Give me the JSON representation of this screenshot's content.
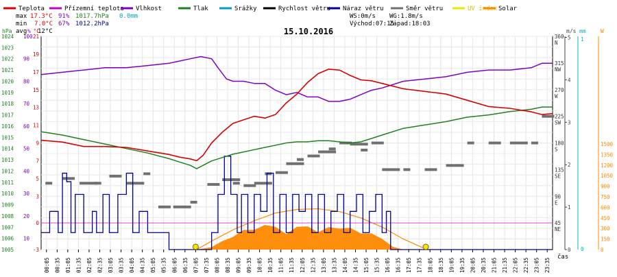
{
  "chart_data": {
    "type": "line",
    "title": "15.10.2016",
    "legend": [
      {
        "name": "Teplota",
        "color": "#d80000"
      },
      {
        "name": "Přízemní teplota",
        "color": "#c000c0"
      },
      {
        "name": "Vlhkost",
        "color": "#8000c0"
      },
      {
        "name": "Tlak",
        "color": "#208020"
      },
      {
        "name": "Srážky",
        "color": "#00a0c0"
      },
      {
        "name": "Rychlost větru",
        "color": "#000000"
      },
      {
        "name": "Náraz větru",
        "color": "#000090"
      },
      {
        "name": "Směr větru",
        "color": "#707070"
      },
      {
        "name": "UV index",
        "color": "#e8e800"
      },
      {
        "name": "Solar",
        "color": "#ff8800"
      }
    ],
    "stats": {
      "max_label": "max",
      "max_temp": "17.3°C",
      "max_hum": "91%",
      "max_press": "1017.7hPa",
      "max_rain": "0.0mm",
      "min_label": "min",
      "min_temp": "7.0°C",
      "min_hum": "67%",
      "min_press": "1012.2hPa",
      "avg_label": "avg",
      "avg_temp": "12°C",
      "ws": "WS:0m/s",
      "wg": "WG:1.8m/s",
      "sunrise": "Východ:07:15",
      "sunset": "Západ:18:03"
    },
    "axes": {
      "hpa": {
        "unit": "hPa",
        "color": "#208020",
        "ticks": [
          "1005",
          "1006",
          "1007",
          "1008",
          "1009",
          "1010",
          "1011",
          "1012",
          "1013",
          "1014",
          "1015",
          "1016",
          "1017",
          "1018",
          "1019",
          "1020",
          "1021",
          "1022",
          "1023",
          "1024"
        ]
      },
      "pct": {
        "unit": "%",
        "color": "#8000c0",
        "ticks": [
          "10",
          "20",
          "30",
          "40",
          "50",
          "60",
          "70",
          "80",
          "90",
          "100"
        ]
      },
      "temp": {
        "unit": "°C",
        "color": "#d80000",
        "ticks": [
          "-3",
          "0",
          "3",
          "5",
          "7",
          "9",
          "11",
          "13",
          "15",
          "17",
          "19",
          "21"
        ]
      },
      "dir": {
        "ticks": [
          "360",
          "N",
          "315",
          "NW",
          "270",
          "W",
          "225",
          "SW",
          "180",
          "S",
          "135",
          "SE",
          "90",
          "E",
          "45",
          "NE"
        ]
      },
      "ms": {
        "unit": "m/s",
        "color": "#404040",
        "ticks": [
          "0",
          "1",
          "2",
          "3",
          "4",
          "5"
        ]
      },
      "mm": {
        "unit": "mm",
        "color": "#00b0c0",
        "ticks": [
          "0",
          "1"
        ]
      },
      "solar": {
        "unit": "W",
        "color": "#ff8800",
        "ticks": [
          "0",
          "150",
          "300",
          "450",
          "600",
          "750",
          "900",
          "1050",
          "1200",
          "1350",
          "1500"
        ]
      }
    },
    "x_label": "čas",
    "x_ticks": [
      "00:05",
      "00:35",
      "01:05",
      "01:35",
      "02:05",
      "02:35",
      "03:05",
      "03:35",
      "04:05",
      "04:35",
      "05:05",
      "05:35",
      "06:05",
      "06:35",
      "07:05",
      "07:35",
      "08:05",
      "08:35",
      "09:05",
      "09:35",
      "10:05",
      "10:35",
      "11:05",
      "11:35",
      "12:05",
      "12:35",
      "13:05",
      "13:35",
      "14:05",
      "14:35",
      "15:05",
      "15:35",
      "16:05",
      "16:35",
      "17:05",
      "17:35",
      "18:05",
      "18:35",
      "19:05",
      "19:35",
      "20:05",
      "20:35",
      "21:05",
      "21:35",
      "22:05",
      "22:35",
      "23:05",
      "23:35"
    ],
    "series": {
      "temperature": {
        "x_hours": [
          0,
          1,
          2,
          3,
          4,
          5,
          6,
          6.5,
          7,
          7.3,
          7.6,
          8,
          8.5,
          9,
          9.5,
          10,
          10.5,
          11,
          11.5,
          12,
          12.5,
          13,
          13.5,
          14,
          14.5,
          15,
          15.5,
          16,
          17,
          18,
          19,
          20,
          21,
          22,
          23,
          23.5,
          24
        ],
        "values": [
          9.3,
          9.1,
          8.6,
          8.6,
          8.5,
          8.1,
          7.7,
          7.4,
          7.2,
          7.0,
          7.6,
          9.0,
          10.2,
          11.2,
          11.6,
          12.0,
          11.8,
          12.2,
          13.5,
          14.5,
          15.8,
          16.8,
          17.3,
          17.2,
          16.6,
          16.1,
          16.0,
          15.7,
          15.1,
          14.8,
          14.5,
          13.8,
          13.1,
          12.9,
          12.5,
          12.2,
          12.3
        ]
      },
      "humidity": {
        "x_hours": [
          0,
          1,
          2,
          3,
          4,
          5,
          6,
          6.5,
          7,
          7.5,
          8,
          8.3,
          8.7,
          9,
          9.5,
          10,
          10.5,
          11,
          11.5,
          12,
          12.5,
          13,
          13.5,
          14,
          14.5,
          15,
          15.5,
          16,
          17,
          18,
          19,
          20,
          21,
          22,
          23,
          23.5,
          24
        ],
        "values": [
          83,
          84,
          85,
          86,
          86,
          87,
          88,
          89,
          90,
          91,
          90,
          86,
          81,
          80,
          80,
          79,
          79,
          76,
          74,
          75,
          73,
          73,
          71,
          71,
          72,
          74,
          76,
          77,
          80,
          81,
          82,
          84,
          85,
          85,
          86,
          88,
          88
        ]
      },
      "pressure": {
        "x_hours": [
          0,
          1,
          2,
          3,
          4,
          5,
          6,
          6.5,
          7,
          7.3,
          7.7,
          8,
          8.5,
          9,
          9.5,
          10,
          10.5,
          11,
          11.5,
          12,
          12.5,
          13,
          13.5,
          14,
          14.5,
          15,
          15.5,
          16,
          17,
          18,
          19,
          20,
          21,
          22,
          23,
          23.5,
          24
        ],
        "values": [
          1015.5,
          1015.2,
          1014.8,
          1014.4,
          1014.0,
          1013.6,
          1013.1,
          1012.8,
          1012.5,
          1012.2,
          1012.6,
          1012.9,
          1013.2,
          1013.5,
          1013.7,
          1013.9,
          1014.1,
          1014.3,
          1014.5,
          1014.6,
          1014.6,
          1014.7,
          1014.7,
          1014.6,
          1014.5,
          1014.6,
          1014.9,
          1015.2,
          1015.8,
          1016.1,
          1016.4,
          1016.8,
          1017.0,
          1017.3,
          1017.5,
          1017.7,
          1017.7
        ]
      },
      "wind_direction_deg": {
        "x_hours": [
          0.2,
          1,
          1.8,
          2.5,
          3.2,
          4,
          4.8,
          5.5,
          6.2,
          7,
          7.8,
          8.5,
          9,
          9.5,
          10,
          10.5,
          11,
          11.5,
          12,
          12.5,
          13,
          13.5,
          14,
          14.5,
          15,
          15.5,
          16,
          17,
          18,
          19,
          20,
          21,
          22,
          23,
          23.5
        ],
        "values": [
          112,
          120,
          112,
          112,
          124,
          112,
          128,
          72,
          72,
          80,
          110,
          118,
          112,
          108,
          112,
          128,
          130,
          145,
          152,
          158,
          165,
          170,
          180,
          178,
          168,
          180,
          135,
          135,
          135,
          142,
          180,
          180,
          180,
          180,
          225
        ]
      },
      "wind_gust_ms": {
        "x_hours": [
          0,
          0.4,
          0.8,
          1.0,
          1.2,
          1.4,
          1.6,
          2.0,
          2.4,
          2.6,
          2.9,
          3.2,
          3.6,
          4.0,
          4.3,
          4.6,
          5.0,
          5.4,
          5.6,
          6.0,
          8.0,
          8.3,
          8.6,
          8.9,
          9.2,
          9.4,
          9.7,
          10.0,
          10.3,
          10.6,
          10.9,
          11.2,
          11.5,
          11.8,
          12.1,
          12.4,
          12.7,
          13.0,
          13.3,
          13.6,
          13.9,
          14.2,
          14.5,
          14.8,
          15.1,
          15.4,
          15.7,
          16.0,
          16.2,
          16.4,
          16.7,
          17.0,
          24
        ],
        "values": [
          0.4,
          0.9,
          0.4,
          1.8,
          1.6,
          0.4,
          1.3,
          0.4,
          0.9,
          0.4,
          1.3,
          0.4,
          1.3,
          1.8,
          0.4,
          0.9,
          0.4,
          0.4,
          0.4,
          0,
          0.4,
          1.3,
          2.2,
          1.3,
          0.4,
          1.3,
          0.4,
          1.3,
          0.9,
          1.8,
          0.4,
          1.3,
          0.4,
          1.3,
          0.9,
          1.3,
          0.4,
          1.3,
          0.4,
          0.9,
          1.3,
          0.4,
          0.9,
          1.3,
          0.4,
          0.9,
          1.3,
          0.4,
          0.9,
          0,
          0,
          0,
          0
        ]
      },
      "solar_wm2": {
        "x_hours": [
          7.3,
          8,
          8.5,
          9,
          9.5,
          10,
          10.5,
          11,
          11.5,
          12,
          12.5,
          13,
          13.5,
          14,
          14.5,
          15,
          15.5,
          16,
          16.5,
          17
        ],
        "values": [
          0,
          40,
          120,
          210,
          280,
          330,
          350,
          380,
          220,
          380,
          330,
          290,
          320,
          350,
          310,
          270,
          230,
          180,
          40,
          0
        ]
      },
      "solar_max_wm2": {
        "x_hours": [
          7.3,
          8,
          9,
          10,
          11,
          12,
          13,
          14,
          15,
          16,
          17,
          18.1
        ],
        "values": [
          0,
          120,
          280,
          410,
          520,
          570,
          580,
          540,
          450,
          320,
          150,
          0
        ]
      },
      "uv_index": {
        "x_hours": [
          7.25,
          18.05
        ],
        "values": [
          0,
          0
        ]
      }
    }
  }
}
